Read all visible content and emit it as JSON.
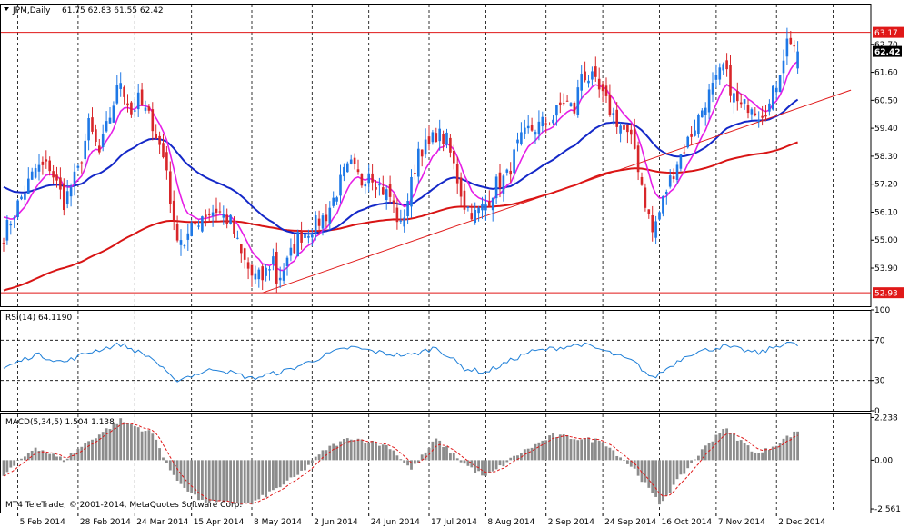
{
  "header": {
    "symbol": "JPM,Daily",
    "ohlc": "61.75 62.83 61.55 62.42"
  },
  "copyright": "MT4 TeleTrade, © 2001-2014, MetaQuotes Software Corp.",
  "colors": {
    "background": "#ffffff",
    "bull_candle": "#1e78e6",
    "bear_candle": "#d8262a",
    "ema_fast": "#e61ee6",
    "ema_mid": "#1428c8",
    "ema_slow": "#d81414",
    "level_lines": "#e01818",
    "rsi_line": "#1e7fd8",
    "macd_hist": "#8c8c8c",
    "macd_signal": "#e01818"
  },
  "chart_data": [
    {
      "type": "candlestick",
      "symbol": "JPM",
      "timeframe": "Daily",
      "ylim": [
        52.4,
        64.3
      ],
      "y_ticks": [
        "62.70",
        "61.60",
        "60.50",
        "59.40",
        "58.30",
        "57.20",
        "56.10",
        "55.00",
        "53.90"
      ],
      "x_tick_labels": [
        "5 Feb 2014",
        "28 Feb 2014",
        "24 Mar 2014",
        "15 Apr 2014",
        "8 May 2014",
        "2 Jun 2014",
        "24 Jun 2014",
        "17 Jul 2014",
        "8 Aug 2014",
        "2 Sep 2014",
        "24 Sep 2014",
        "16 Oct 2014",
        "7 Nov 2014",
        "2 Dec 2014"
      ],
      "horizontal_levels": [
        {
          "value": 63.17,
          "label": "63.17"
        },
        {
          "value": 52.93,
          "label": "52.93"
        }
      ],
      "current_price": {
        "value": 62.42,
        "label": "62.42"
      },
      "trendline": {
        "from": {
          "date": "13 May 2014",
          "price": 52.93
        },
        "to": {
          "date": "31 Dec 2014",
          "price": 60.9
        }
      },
      "keypoints": [
        {
          "date": "30 Jan 2014",
          "price": 55.2
        },
        {
          "date": "5 Feb 2014",
          "price": 56.4
        },
        {
          "date": "12 Feb 2014",
          "price": 57.8
        },
        {
          "date": "18 Feb 2014",
          "price": 57.9
        },
        {
          "date": "24 Feb 2014",
          "price": 56.5
        },
        {
          "date": "28 Feb 2014",
          "price": 57.7
        },
        {
          "date": "5 Mar 2014",
          "price": 59.5
        },
        {
          "date": "10 Mar 2014",
          "price": 58.4
        },
        {
          "date": "14 Mar 2014",
          "price": 60.4
        },
        {
          "date": "18 Mar 2014",
          "price": 61.3
        },
        {
          "date": "21 Mar 2014",
          "price": 60.0
        },
        {
          "date": "25 Mar 2014",
          "price": 60.5
        },
        {
          "date": "31 Mar 2014",
          "price": 59.6
        },
        {
          "date": "4 Apr 2014",
          "price": 57.8
        },
        {
          "date": "8 Apr 2014",
          "price": 55.5
        },
        {
          "date": "11 Apr 2014",
          "price": 54.9
        },
        {
          "date": "15 Apr 2014",
          "price": 55.4
        },
        {
          "date": "18 Apr 2014",
          "price": 56.0
        },
        {
          "date": "24 Apr 2014",
          "price": 56.2
        },
        {
          "date": "30 Apr 2014",
          "price": 55.7
        },
        {
          "date": "5 May 2014",
          "price": 54.4
        },
        {
          "date": "8 May 2014",
          "price": 53.6
        },
        {
          "date": "13 May 2014",
          "price": 53.5
        },
        {
          "date": "16 May 2014",
          "price": 54.3
        },
        {
          "date": "19 May 2014",
          "price": 53.4
        },
        {
          "date": "22 May 2014",
          "price": 54.1
        },
        {
          "date": "27 May 2014",
          "price": 55.1
        },
        {
          "date": "2 Jun 2014",
          "price": 55.5
        },
        {
          "date": "6 Jun 2014",
          "price": 56.0
        },
        {
          "date": "10 Jun 2014",
          "price": 56.6
        },
        {
          "date": "13 Jun 2014",
          "price": 57.6
        },
        {
          "date": "17 Jun 2014",
          "price": 57.9
        },
        {
          "date": "20 Jun 2014",
          "price": 57.3
        },
        {
          "date": "24 Jun 2014",
          "price": 57.8
        },
        {
          "date": "27 Jun 2014",
          "price": 57.1
        },
        {
          "date": "2 Jul 2014",
          "price": 56.7
        },
        {
          "date": "7 Jul 2014",
          "price": 55.5
        },
        {
          "date": "10 Jul 2014",
          "price": 57.2
        },
        {
          "date": "14 Jul 2014",
          "price": 58.6
        },
        {
          "date": "17 Jul 2014",
          "price": 58.7
        },
        {
          "date": "21 Jul 2014",
          "price": 59.2
        },
        {
          "date": "24 Jul 2014",
          "price": 58.9
        },
        {
          "date": "28 Jul 2014",
          "price": 57.9
        },
        {
          "date": "31 Jul 2014",
          "price": 56.4
        },
        {
          "date": "5 Aug 2014",
          "price": 56.0
        },
        {
          "date": "8 Aug 2014",
          "price": 56.4
        },
        {
          "date": "13 Aug 2014",
          "price": 57.2
        },
        {
          "date": "18 Aug 2014",
          "price": 57.5
        },
        {
          "date": "21 Aug 2014",
          "price": 58.7
        },
        {
          "date": "26 Aug 2014",
          "price": 59.3
        },
        {
          "date": "29 Aug 2014",
          "price": 59.5
        },
        {
          "date": "4 Sep 2014",
          "price": 59.8
        },
        {
          "date": "9 Sep 2014",
          "price": 60.5
        },
        {
          "date": "12 Sep 2014",
          "price": 60.1
        },
        {
          "date": "16 Sep 2014",
          "price": 61.6
        },
        {
          "date": "19 Sep 2014",
          "price": 61.3
        },
        {
          "date": "24 Sep 2014",
          "price": 60.6
        },
        {
          "date": "29 Sep 2014",
          "price": 59.9
        },
        {
          "date": "2 Oct 2014",
          "price": 59.3
        },
        {
          "date": "7 Oct 2014",
          "price": 58.6
        },
        {
          "date": "10 Oct 2014",
          "price": 56.5
        },
        {
          "date": "14 Oct 2014",
          "price": 55.3
        },
        {
          "date": "16 Oct 2014",
          "price": 56.1
        },
        {
          "date": "20 Oct 2014",
          "price": 57.0
        },
        {
          "date": "23 Oct 2014",
          "price": 58.1
        },
        {
          "date": "28 Oct 2014",
          "price": 58.9
        },
        {
          "date": "31 Oct 2014",
          "price": 59.8
        },
        {
          "date": "4 Nov 2014",
          "price": 60.5
        },
        {
          "date": "7 Nov 2014",
          "price": 61.2
        },
        {
          "date": "11 Nov 2014",
          "price": 61.8
        },
        {
          "date": "14 Nov 2014",
          "price": 60.6
        },
        {
          "date": "18 Nov 2014",
          "price": 60.2
        },
        {
          "date": "21 Nov 2014",
          "price": 60.4
        },
        {
          "date": "25 Nov 2014",
          "price": 60.0
        },
        {
          "date": "28 Nov 2014",
          "price": 60.3
        },
        {
          "date": "2 Dec 2014",
          "price": 61.2
        },
        {
          "date": "5 Dec 2014",
          "price": 62.8
        },
        {
          "date": "8 Dec 2014",
          "price": 62.9
        },
        {
          "date": "10 Dec 2014",
          "price": 62.42
        }
      ]
    },
    {
      "type": "line",
      "label": "RSI(14) 64.1190",
      "ylim": [
        0,
        100
      ],
      "y_ticks": [
        "100",
        "70",
        "30",
        "0"
      ],
      "levels": [
        70,
        30
      ],
      "keypoints": [
        {
          "date": "30 Jan 2014",
          "value": 42
        },
        {
          "date": "12 Feb 2014",
          "value": 56
        },
        {
          "date": "24 Feb 2014",
          "value": 48
        },
        {
          "date": "5 Mar 2014",
          "value": 58
        },
        {
          "date": "18 Mar 2014",
          "value": 66
        },
        {
          "date": "31 Mar 2014",
          "value": 52
        },
        {
          "date": "8 Apr 2014",
          "value": 30
        },
        {
          "date": "24 Apr 2014",
          "value": 42
        },
        {
          "date": "8 May 2014",
          "value": 32
        },
        {
          "date": "22 May 2014",
          "value": 40
        },
        {
          "date": "10 Jun 2014",
          "value": 58
        },
        {
          "date": "17 Jun 2014",
          "value": 63
        },
        {
          "date": "2 Jul 2014",
          "value": 56
        },
        {
          "date": "10 Jul 2014",
          "value": 55
        },
        {
          "date": "21 Jul 2014",
          "value": 63
        },
        {
          "date": "31 Jul 2014",
          "value": 42
        },
        {
          "date": "8 Aug 2014",
          "value": 38
        },
        {
          "date": "26 Aug 2014",
          "value": 58
        },
        {
          "date": "16 Sep 2014",
          "value": 66
        },
        {
          "date": "24 Sep 2014",
          "value": 60
        },
        {
          "date": "7 Oct 2014",
          "value": 48
        },
        {
          "date": "14 Oct 2014",
          "value": 32
        },
        {
          "date": "28 Oct 2014",
          "value": 56
        },
        {
          "date": "11 Nov 2014",
          "value": 64
        },
        {
          "date": "25 Nov 2014",
          "value": 57
        },
        {
          "date": "5 Dec 2014",
          "value": 68
        },
        {
          "date": "10 Dec 2014",
          "value": 64.12
        }
      ]
    },
    {
      "type": "histogram",
      "label": "MACD(5,34,5) 1.504 1.138",
      "ylim": [
        -2.75,
        2.45
      ],
      "y_ticks": [
        "2.238",
        "0.00",
        "-2.561"
      ],
      "histogram_keypoints": [
        {
          "date": "30 Jan 2014",
          "value": -0.8
        },
        {
          "date": "12 Feb 2014",
          "value": 0.7
        },
        {
          "date": "24 Feb 2014",
          "value": 0.0
        },
        {
          "date": "5 Mar 2014",
          "value": 1.0
        },
        {
          "date": "18 Mar 2014",
          "value": 2.1
        },
        {
          "date": "31 Mar 2014",
          "value": 1.4
        },
        {
          "date": "8 Apr 2014",
          "value": -0.9
        },
        {
          "date": "18 Apr 2014",
          "value": -2.2
        },
        {
          "date": "8 May 2014",
          "value": -2.3
        },
        {
          "date": "27 May 2014",
          "value": -0.8
        },
        {
          "date": "6 Jun 2014",
          "value": 0.6
        },
        {
          "date": "17 Jun 2014",
          "value": 1.2
        },
        {
          "date": "2 Jul 2014",
          "value": 0.7
        },
        {
          "date": "10 Jul 2014",
          "value": -0.5
        },
        {
          "date": "21 Jul 2014",
          "value": 1.1
        },
        {
          "date": "31 Jul 2014",
          "value": -0.2
        },
        {
          "date": "8 Aug 2014",
          "value": -0.9
        },
        {
          "date": "21 Aug 2014",
          "value": 0.3
        },
        {
          "date": "4 Sep 2014",
          "value": 1.3
        },
        {
          "date": "24 Sep 2014",
          "value": 1.0
        },
        {
          "date": "7 Oct 2014",
          "value": -0.5
        },
        {
          "date": "16 Oct 2014",
          "value": -2.3
        },
        {
          "date": "31 Oct 2014",
          "value": 0.3
        },
        {
          "date": "11 Nov 2014",
          "value": 1.7
        },
        {
          "date": "25 Nov 2014",
          "value": 0.3
        },
        {
          "date": "5 Dec 2014",
          "value": 1.2
        },
        {
          "date": "10 Dec 2014",
          "value": 1.504
        }
      ]
    }
  ]
}
